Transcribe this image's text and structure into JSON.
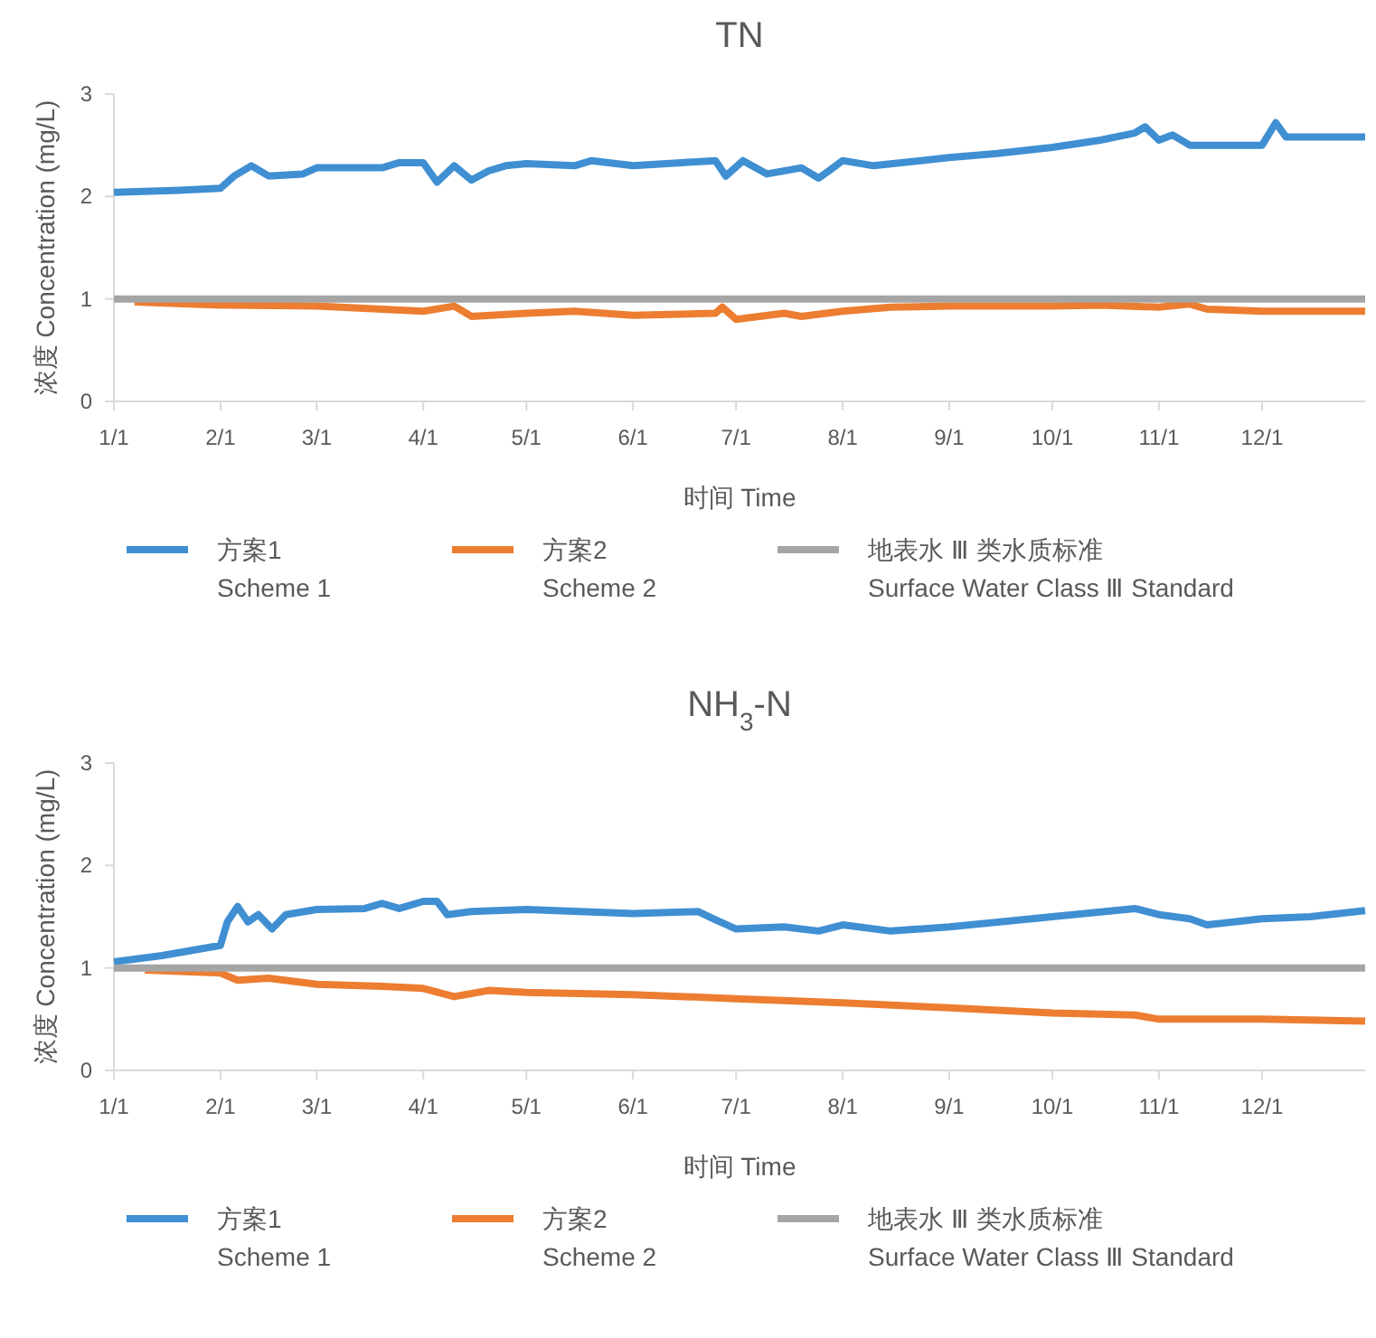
{
  "chart_data": [
    {
      "type": "line",
      "title": "TN",
      "xlabel": "时间  Time",
      "ylabel": "浓度  Concentration (mg/L)",
      "xlim": [
        "--01-01",
        "--12-31"
      ],
      "ylim": [
        0,
        3
      ],
      "yticks": [
        0,
        1,
        2,
        3
      ],
      "xticks": [
        {
          "value": "--01-01",
          "label": "1/1"
        },
        {
          "value": "--02-01",
          "label": "2/1"
        },
        {
          "value": "--03-01",
          "label": "3/1"
        },
        {
          "value": "--04-01",
          "label": "4/1"
        },
        {
          "value": "--05-01",
          "label": "5/1"
        },
        {
          "value": "--06-01",
          "label": "6/1"
        },
        {
          "value": "--07-01",
          "label": "7/1"
        },
        {
          "value": "--08-01",
          "label": "8/1"
        },
        {
          "value": "--09-01",
          "label": "9/1"
        },
        {
          "value": "--10-01",
          "label": "10/1"
        },
        {
          "value": "--11-01",
          "label": "11/1"
        },
        {
          "value": "--12-01",
          "label": "12/1"
        }
      ],
      "grid": false,
      "legend": "bottom",
      "line_style": "solid",
      "marker": "none",
      "series": [
        {
          "name": "方案1\nScheme 1",
          "color": "#3f8fd2",
          "x": [
            "--01-01",
            "--01-20",
            "--02-01",
            "--02-05",
            "--02-10",
            "--02-15",
            "--02-25",
            "--03-01",
            "--03-20",
            "--03-25",
            "--04-01",
            "--04-05",
            "--04-10",
            "--04-15",
            "--04-20",
            "--04-25",
            "--05-01",
            "--05-15",
            "--05-20",
            "--06-01",
            "--06-15",
            "--06-25",
            "--06-28",
            "--07-03",
            "--07-10",
            "--07-20",
            "--07-25",
            "--07-28",
            "--08-01",
            "--08-10",
            "--09-01",
            "--09-15",
            "--10-01",
            "--10-15",
            "--10-25",
            "--10-28",
            "--11-01",
            "--11-05",
            "--11-10",
            "--12-01",
            "--12-05",
            "--12-08",
            "--12-31"
          ],
          "values": [
            2.04,
            2.06,
            2.08,
            2.2,
            2.3,
            2.2,
            2.22,
            2.28,
            2.28,
            2.33,
            2.33,
            2.14,
            2.3,
            2.16,
            2.25,
            2.3,
            2.32,
            2.3,
            2.35,
            2.3,
            2.33,
            2.35,
            2.2,
            2.35,
            2.22,
            2.28,
            2.18,
            2.25,
            2.35,
            2.3,
            2.38,
            2.42,
            2.48,
            2.55,
            2.62,
            2.68,
            2.55,
            2.6,
            2.5,
            2.5,
            2.72,
            2.58,
            2.58
          ]
        },
        {
          "name": "方案2\nScheme 2",
          "color": "#ed7d31",
          "x": [
            "--01-07",
            "--02-01",
            "--03-01",
            "--04-01",
            "--04-10",
            "--04-15",
            "--05-01",
            "--05-15",
            "--06-01",
            "--06-25",
            "--06-27",
            "--07-01",
            "--07-15",
            "--07-20",
            "--08-01",
            "--08-15",
            "--09-01",
            "--10-01",
            "--10-15",
            "--11-01",
            "--11-10",
            "--11-15",
            "--12-01",
            "--12-31"
          ],
          "values": [
            0.97,
            0.94,
            0.93,
            0.88,
            0.93,
            0.83,
            0.86,
            0.88,
            0.84,
            0.86,
            0.92,
            0.8,
            0.86,
            0.83,
            0.88,
            0.92,
            0.93,
            0.93,
            0.94,
            0.92,
            0.95,
            0.9,
            0.88,
            0.88
          ]
        },
        {
          "name": "地表水 Ⅲ 类水质标准\nSurface Water Class Ⅲ Standard",
          "color": "#a5a5a5",
          "x": [
            "--01-01",
            "--12-31"
          ],
          "values": [
            1,
            1
          ]
        }
      ]
    },
    {
      "type": "line",
      "title": "NH$_{3}$-N",
      "xlabel": "时间  Time",
      "ylabel": "浓度  Concentration (mg/L)",
      "xlim": [
        "--01-01",
        "--12-31"
      ],
      "ylim": [
        0,
        3
      ],
      "yticks": [
        0,
        1,
        2,
        3
      ],
      "xticks": [
        {
          "value": "--01-01",
          "label": "1/1"
        },
        {
          "value": "--02-01",
          "label": "2/1"
        },
        {
          "value": "--03-01",
          "label": "3/1"
        },
        {
          "value": "--04-01",
          "label": "4/1"
        },
        {
          "value": "--05-01",
          "label": "5/1"
        },
        {
          "value": "--06-01",
          "label": "6/1"
        },
        {
          "value": "--07-01",
          "label": "7/1"
        },
        {
          "value": "--08-01",
          "label": "8/1"
        },
        {
          "value": "--09-01",
          "label": "9/1"
        },
        {
          "value": "--10-01",
          "label": "10/1"
        },
        {
          "value": "--11-01",
          "label": "11/1"
        },
        {
          "value": "--12-01",
          "label": "12/1"
        }
      ],
      "grid": false,
      "legend": "bottom",
      "line_style": "solid",
      "marker": "none",
      "series": [
        {
          "name": "方案1\nScheme 1",
          "color": "#3f8fd2",
          "x": [
            "--01-01",
            "--01-15",
            "--02-01",
            "--02-03",
            "--02-06",
            "--02-09",
            "--02-12",
            "--02-16",
            "--02-20",
            "--03-01",
            "--03-15",
            "--03-20",
            "--03-25",
            "--04-01",
            "--04-05",
            "--04-08",
            "--04-15",
            "--05-01",
            "--06-01",
            "--06-20",
            "--06-25",
            "--07-01",
            "--07-15",
            "--07-25",
            "--08-01",
            "--08-15",
            "--09-01",
            "--10-01",
            "--10-25",
            "--11-01",
            "--11-10",
            "--11-15",
            "--12-01",
            "--12-15",
            "--12-31"
          ],
          "values": [
            1.06,
            1.12,
            1.22,
            1.45,
            1.6,
            1.45,
            1.52,
            1.38,
            1.52,
            1.57,
            1.58,
            1.63,
            1.58,
            1.65,
            1.65,
            1.52,
            1.55,
            1.57,
            1.53,
            1.55,
            1.47,
            1.38,
            1.4,
            1.36,
            1.42,
            1.36,
            1.4,
            1.5,
            1.58,
            1.52,
            1.48,
            1.42,
            1.48,
            1.5,
            1.56
          ]
        },
        {
          "name": "方案2\nScheme 2",
          "color": "#ed7d31",
          "x": [
            "--01-10",
            "--02-01",
            "--02-06",
            "--02-15",
            "--03-01",
            "--03-20",
            "--04-01",
            "--04-10",
            "--04-20",
            "--05-01",
            "--06-01",
            "--07-01",
            "--08-01",
            "--09-01",
            "--10-01",
            "--10-25",
            "--11-01",
            "--12-01",
            "--12-31"
          ],
          "values": [
            0.98,
            0.95,
            0.88,
            0.9,
            0.84,
            0.82,
            0.8,
            0.72,
            0.78,
            0.76,
            0.74,
            0.7,
            0.66,
            0.61,
            0.56,
            0.54,
            0.5,
            0.5,
            0.48
          ]
        },
        {
          "name": "地表水 Ⅲ 类水质标准\nSurface Water Class Ⅲ Standard",
          "color": "#a5a5a5",
          "x": [
            "--01-01",
            "--12-31"
          ],
          "values": [
            1,
            1
          ]
        }
      ]
    }
  ]
}
